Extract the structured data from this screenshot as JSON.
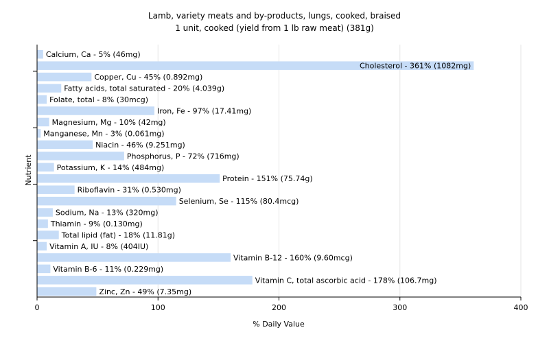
{
  "chart_data": {
    "type": "bar",
    "orientation": "horizontal",
    "title": "Lamb, variety meats and by-products, lungs, cooked, braised",
    "subtitle": "1 unit, cooked (yield from 1 lb raw meat) (381g)",
    "xlabel": "% Daily Value",
    "ylabel": "Nutrient",
    "xlim": [
      0,
      400
    ],
    "xticks": [
      0,
      100,
      200,
      300,
      400
    ],
    "grid": true,
    "bar_color": "#c6dcf7",
    "categories": [
      "Calcium, Ca",
      "Cholesterol",
      "Copper, Cu",
      "Fatty acids, total saturated",
      "Folate, total",
      "Iron, Fe",
      "Magnesium, Mg",
      "Manganese, Mn",
      "Niacin",
      "Phosphorus, P",
      "Potassium, K",
      "Protein",
      "Riboflavin",
      "Selenium, Se",
      "Sodium, Na",
      "Thiamin",
      "Total lipid (fat)",
      "Vitamin A, IU",
      "Vitamin B-12",
      "Vitamin B-6",
      "Vitamin C, total ascorbic acid",
      "Zinc, Zn"
    ],
    "values": [
      5,
      361,
      45,
      20,
      8,
      97,
      10,
      3,
      46,
      72,
      14,
      151,
      31,
      115,
      13,
      9,
      18,
      8,
      160,
      11,
      178,
      49
    ],
    "labels": [
      "Calcium, Ca - 5% (46mg)",
      "Cholesterol - 361% (1082mg)",
      "Copper, Cu - 45% (0.892mg)",
      "Fatty acids, total saturated - 20% (4.039g)",
      "Folate, total - 8% (30mcg)",
      "Iron, Fe - 97% (17.41mg)",
      "Magnesium, Mg - 10% (42mg)",
      "Manganese, Mn - 3% (0.061mg)",
      "Niacin - 46% (9.251mg)",
      "Phosphorus, P - 72% (716mg)",
      "Potassium, K - 14% (484mg)",
      "Protein - 151% (75.74g)",
      "Riboflavin - 31% (0.530mg)",
      "Selenium, Se - 115% (80.4mcg)",
      "Sodium, Na - 13% (320mg)",
      "Thiamin - 9% (0.130mg)",
      "Total lipid (fat) - 18% (11.81g)",
      "Vitamin A, IU - 8% (404IU)",
      "Vitamin B-12 - 160% (9.60mcg)",
      "Vitamin B-6 - 11% (0.229mg)",
      "Vitamin C, total ascorbic acid - 178% (106.7mg)",
      "Zinc, Zn - 49% (7.35mg)"
    ]
  }
}
